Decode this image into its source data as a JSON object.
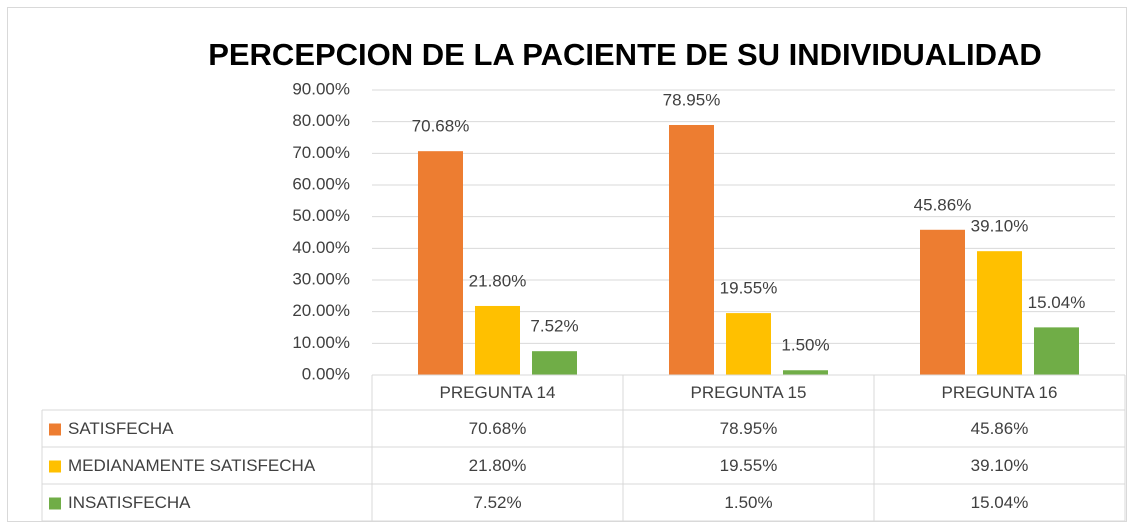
{
  "chart_data": {
    "type": "bar",
    "title": "PERCEPCION DE LA PACIENTE DE SU INDIVIDUALIDAD",
    "categories": [
      "PREGUNTA 14",
      "PREGUNTA 15",
      "PREGUNTA 16"
    ],
    "series": [
      {
        "name": "SATISFECHA",
        "color": "#ed7d31",
        "values": [
          70.68,
          78.95,
          45.86
        ],
        "value_labels": [
          "70.68%",
          "78.95%",
          "45.86%"
        ]
      },
      {
        "name": "MEDIANAMENTE SATISFECHA",
        "color": "#ffc000",
        "values": [
          21.8,
          19.55,
          39.1
        ],
        "value_labels": [
          "21.80%",
          "19.55%",
          "39.10%"
        ]
      },
      {
        "name": "INSATISFECHA",
        "color": "#70ad47",
        "values": [
          7.52,
          1.5,
          15.04
        ],
        "value_labels": [
          "7.52%",
          "1.50%",
          "15.04%"
        ]
      }
    ],
    "ylim": [
      0,
      90
    ],
    "yticks": [
      {
        "value": 0,
        "label": "0.00%"
      },
      {
        "value": 10,
        "label": "10.00%"
      },
      {
        "value": 20,
        "label": "20.00%"
      },
      {
        "value": 30,
        "label": "30.00%"
      },
      {
        "value": 40,
        "label": "40.00%"
      },
      {
        "value": 50,
        "label": "50.00%"
      },
      {
        "value": 60,
        "label": "60.00%"
      },
      {
        "value": 70,
        "label": "70.00%"
      },
      {
        "value": 80,
        "label": "80.00%"
      },
      {
        "value": 90,
        "label": "90.00%"
      }
    ],
    "grid": true,
    "data_table": true
  }
}
